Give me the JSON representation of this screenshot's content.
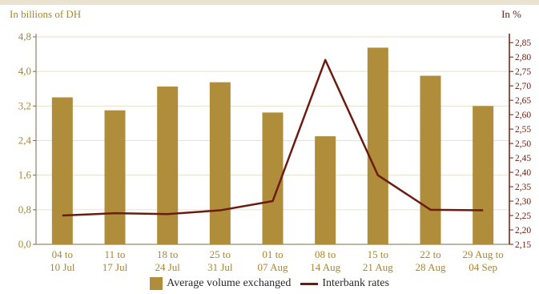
{
  "chart_data": {
    "type": "bar+line",
    "left_axis_unit": "In billions of DH",
    "right_axis_unit": "In %",
    "categories": [
      [
        "04 to",
        "10 Jul"
      ],
      [
        "11 to",
        "17 Jul"
      ],
      [
        "18 to",
        "24 Jul"
      ],
      [
        "25 to",
        "31 Jul"
      ],
      [
        "01 to",
        "07 Aug"
      ],
      [
        "08 to",
        "14 Aug"
      ],
      [
        "15 to",
        "21 Aug"
      ],
      [
        "22 to",
        "28 Aug"
      ],
      [
        "29 Aug to",
        "04 Sep"
      ]
    ],
    "series": [
      {
        "name": "Average volume exchanged",
        "type": "bar",
        "axis": "left",
        "color": "#b08d3a",
        "values": [
          3.4,
          3.1,
          3.65,
          3.75,
          3.05,
          2.5,
          4.55,
          3.9,
          3.2
        ]
      },
      {
        "name": "Interbank rates",
        "type": "line",
        "axis": "right",
        "color": "#6a1c10",
        "values": [
          2.25,
          2.258,
          2.255,
          2.268,
          2.3,
          2.79,
          2.39,
          2.27,
          2.268
        ]
      }
    ],
    "left_axis": {
      "range": [
        0,
        4.8
      ],
      "ticks": [
        "0,0",
        "0,8",
        "1,6",
        "2,4",
        "3,2",
        "4,0",
        "4,8"
      ],
      "tick_values": [
        0,
        0.8,
        1.6,
        2.4,
        3.2,
        4.0,
        4.8
      ]
    },
    "right_axis": {
      "range": [
        2.15,
        2.87
      ],
      "ticks": [
        "2,15",
        "2,20",
        "2,25",
        "2,30",
        "2,35",
        "2,40",
        "2,45",
        "2,50",
        "2,55",
        "2,60",
        "2,65",
        "2,70",
        "2,75",
        "2,80",
        "2,85"
      ],
      "tick_values": [
        2.15,
        2.2,
        2.25,
        2.3,
        2.35,
        2.4,
        2.45,
        2.5,
        2.55,
        2.6,
        2.65,
        2.7,
        2.75,
        2.8,
        2.85
      ]
    },
    "grid": "horizontal",
    "legend_position": "bottom"
  },
  "colors": {
    "left_axis_text": "#a8862e",
    "right_axis_text": "#6a1c10",
    "grid": "#e6e0cc"
  }
}
